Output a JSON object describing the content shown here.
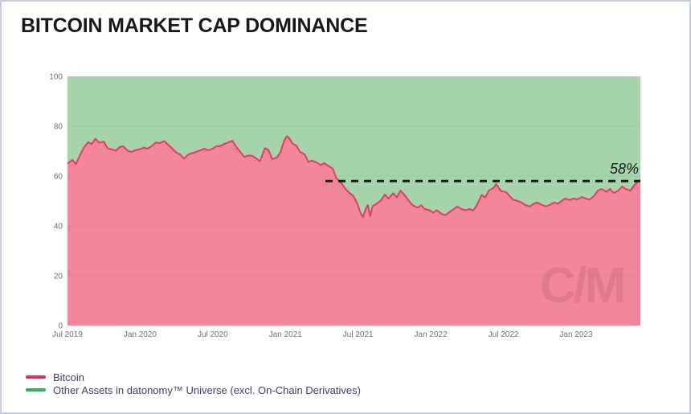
{
  "page": {
    "title": "BITCOIN MARKET CAP DOMINANCE"
  },
  "colors": {
    "bitcoin_line": "#e43a63",
    "bitcoin_fill": "#f2879c",
    "other_fill": "#a6d5ab",
    "legend_bitcoin_swatch": "#e22f58",
    "legend_other_swatch": "#3bae5e",
    "annotation_line": "#1b1b1b",
    "axis_text": "#6b7186",
    "gridline": "rgba(0,0,0,0.05)",
    "card_border": "#c9ccdf"
  },
  "watermark": {
    "text": "C/M"
  },
  "legend": {
    "items": [
      {
        "label": "Bitcoin",
        "color": "#e22f58"
      },
      {
        "label": "Other Assets in datonomy™ Universe (excl. On-Chain Derivatives)",
        "color": "#3bae5e"
      }
    ]
  },
  "chart_data": {
    "type": "area",
    "stacked": true,
    "title": "BITCOIN MARKET CAP DOMINANCE",
    "xlabel": "",
    "ylabel": "",
    "ylim": [
      0,
      100
    ],
    "grid": "horizontal-faint",
    "legend_position": "bottom-left",
    "y_ticks": [
      0,
      20,
      40,
      60,
      80,
      100
    ],
    "x_ticks": [
      {
        "t": 0,
        "label": "Jul 2019"
      },
      {
        "t": 6,
        "label": "Jan 2020"
      },
      {
        "t": 12,
        "label": "Jul 2020"
      },
      {
        "t": 18,
        "label": "Jan 2021"
      },
      {
        "t": 24,
        "label": "Jul 2021"
      },
      {
        "t": 30,
        "label": "Jan 2022"
      },
      {
        "t": 36,
        "label": "Jul 2022"
      },
      {
        "t": 42,
        "label": "Jan 2023"
      }
    ],
    "t_axis_note": "t = months since Jul 2019; axis spans t=0 to t=47.31 (~mid-Jun 2023)",
    "t_max": 47.31,
    "annotation": {
      "label": "58%",
      "value": 58,
      "line_style": "dashed",
      "line_from_t": 21.3
    },
    "series": [
      {
        "name": "Bitcoin",
        "role": "lower-area",
        "unit": "% of market cap",
        "t": [
          0,
          0.4,
          0.7,
          1.0,
          1.3,
          1.7,
          2.0,
          2.3,
          2.6,
          3.0,
          3.3,
          3.7,
          4.0,
          4.3,
          4.6,
          5.0,
          5.3,
          5.6,
          6.0,
          6.3,
          6.6,
          7.0,
          7.3,
          7.6,
          8.0,
          8.3,
          8.6,
          9.0,
          9.3,
          9.6,
          10.0,
          10.3,
          10.6,
          11.0,
          11.3,
          11.6,
          12.0,
          12.3,
          12.6,
          13.0,
          13.3,
          13.6,
          13.9,
          14.3,
          14.6,
          15.0,
          15.3,
          15.6,
          15.9,
          16.3,
          16.6,
          16.9,
          17.3,
          17.6,
          17.9,
          18.1,
          18.3,
          18.6,
          18.9,
          19.2,
          19.6,
          19.9,
          20.2,
          20.6,
          20.9,
          21.2,
          21.6,
          21.9,
          22.2,
          22.6,
          22.9,
          23.2,
          23.6,
          23.9,
          24.2,
          24.4,
          24.6,
          24.8,
          25.0,
          25.2,
          25.5,
          25.9,
          26.2,
          26.5,
          26.9,
          27.2,
          27.5,
          27.9,
          28.2,
          28.5,
          28.9,
          29.2,
          29.5,
          29.9,
          30.2,
          30.5,
          30.9,
          31.2,
          31.5,
          31.9,
          32.2,
          32.5,
          32.9,
          33.2,
          33.5,
          33.8,
          34.2,
          34.5,
          34.8,
          35.2,
          35.4,
          35.6,
          35.8,
          36.2,
          36.5,
          36.8,
          37.2,
          37.5,
          37.8,
          38.2,
          38.5,
          38.8,
          39.2,
          39.5,
          39.8,
          40.2,
          40.5,
          40.8,
          41.1,
          41.5,
          41.8,
          42.1,
          42.5,
          42.8,
          43.1,
          43.5,
          43.8,
          44.1,
          44.5,
          44.8,
          45.1,
          45.5,
          45.8,
          46.1,
          46.5,
          46.8,
          47.1,
          47.31
        ],
        "v": [
          65.0,
          66.5,
          64.8,
          68.0,
          71.0,
          73.6,
          72.8,
          75.0,
          73.4,
          73.8,
          71.2,
          70.6,
          70.2,
          71.6,
          72.0,
          70.0,
          69.7,
          70.4,
          70.8,
          71.4,
          71.0,
          72.2,
          73.5,
          73.2,
          74.0,
          72.6,
          71.3,
          69.4,
          68.7,
          67.0,
          68.7,
          69.2,
          69.7,
          70.4,
          71.0,
          70.3,
          71.0,
          72.0,
          72.0,
          73.0,
          73.5,
          74.2,
          72.0,
          69.5,
          67.7,
          68.3,
          68.0,
          67.0,
          66.0,
          71.2,
          70.4,
          66.8,
          67.5,
          69.7,
          74.3,
          76.0,
          75.3,
          73.0,
          72.2,
          69.7,
          68.6,
          65.6,
          66.2,
          65.4,
          64.4,
          65.2,
          63.9,
          63.0,
          59.2,
          57.3,
          55.2,
          53.6,
          52.0,
          49.4,
          45.2,
          43.6,
          46.4,
          48.4,
          43.9,
          48.0,
          48.8,
          50.3,
          52.6,
          51.0,
          53.1,
          51.4,
          54.2,
          52.0,
          50.0,
          48.3,
          47.3,
          48.3,
          46.8,
          46.3,
          45.3,
          46.3,
          44.8,
          44.3,
          45.4,
          46.8,
          47.8,
          46.8,
          46.3,
          46.8,
          46.2,
          48.3,
          52.4,
          51.4,
          54.2,
          55.3,
          56.8,
          55.4,
          54.0,
          53.6,
          52.1,
          50.5,
          50.0,
          49.4,
          48.4,
          47.8,
          48.9,
          49.4,
          48.4,
          47.8,
          48.4,
          49.4,
          48.9,
          50.0,
          51.0,
          50.4,
          51.0,
          50.6,
          51.6,
          51.0,
          50.5,
          52.1,
          54.2,
          54.8,
          53.7,
          54.8,
          53.2,
          54.2,
          55.8,
          54.8,
          54.2,
          56.3,
          57.8,
          58.5
        ]
      },
      {
        "name": "Other Assets in datonomy™ Universe (excl. On-Chain Derivatives)",
        "role": "upper-area-remainder-to-100",
        "unit": "% of market cap"
      }
    ]
  }
}
